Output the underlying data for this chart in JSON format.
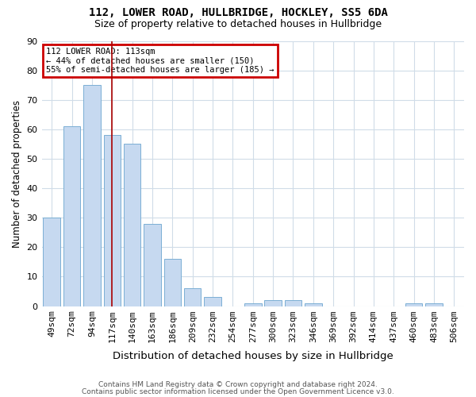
{
  "title1": "112, LOWER ROAD, HULLBRIDGE, HOCKLEY, SS5 6DA",
  "title2": "Size of property relative to detached houses in Hullbridge",
  "xlabel": "Distribution of detached houses by size in Hullbridge",
  "ylabel": "Number of detached properties",
  "bar_values": [
    30,
    61,
    75,
    58,
    55,
    28,
    16,
    6,
    3,
    0,
    1,
    2,
    2,
    1,
    0,
    0,
    0,
    0,
    1,
    1,
    0
  ],
  "bar_labels": [
    "49sqm",
    "72sqm",
    "94sqm",
    "117sqm",
    "140sqm",
    "163sqm",
    "186sqm",
    "209sqm",
    "232sqm",
    "254sqm",
    "277sqm",
    "300sqm",
    "323sqm",
    "346sqm",
    "369sqm",
    "392sqm",
    "414sqm",
    "437sqm",
    "460sqm",
    "483sqm",
    "506sqm"
  ],
  "bar_color": "#c6d9f0",
  "bar_edge_color": "#7bafd4",
  "ylim": [
    0,
    90
  ],
  "yticks": [
    0,
    10,
    20,
    30,
    40,
    50,
    60,
    70,
    80,
    90
  ],
  "red_line_x": 3.0,
  "annotation_text": "112 LOWER ROAD: 113sqm\n← 44% of detached houses are smaller (150)\n55% of semi-detached houses are larger (185) →",
  "annotation_box_color": "#ffffff",
  "annotation_box_edge_color": "#cc0000",
  "footnote1": "Contains HM Land Registry data © Crown copyright and database right 2024.",
  "footnote2": "Contains public sector information licensed under the Open Government Licence v3.0.",
  "bg_color": "#ffffff",
  "grid_color": "#d0dce8",
  "title1_fontsize": 10,
  "title2_fontsize": 9,
  "xlabel_fontsize": 9.5,
  "ylabel_fontsize": 8.5,
  "tick_fontsize": 8,
  "annot_fontsize": 7.5,
  "footnote_fontsize": 6.5
}
